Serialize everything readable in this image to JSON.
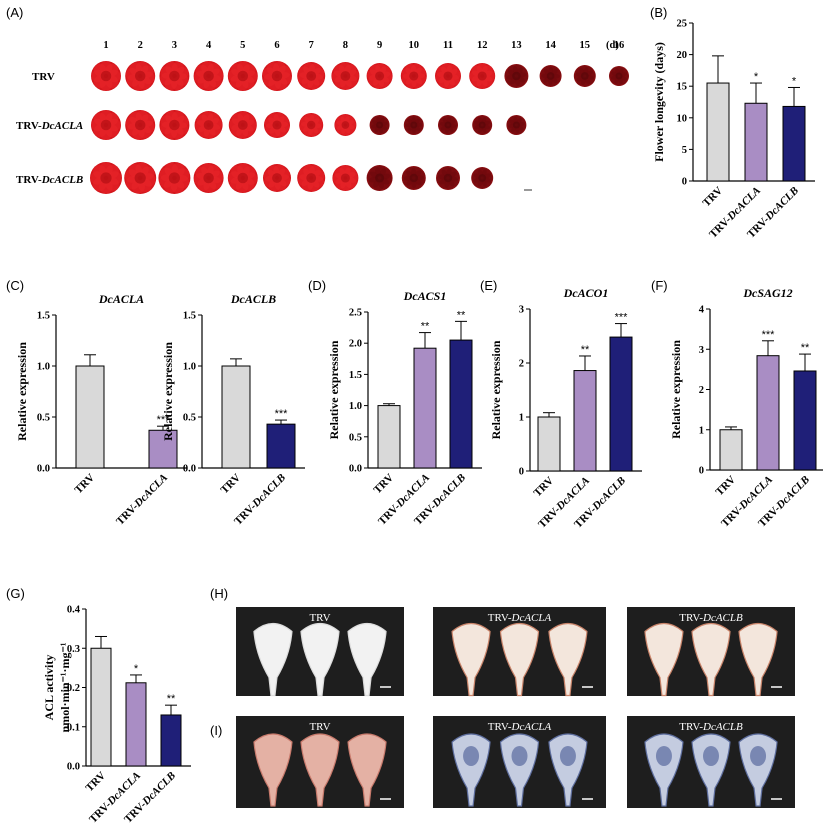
{
  "panels": {
    "A": {
      "letter": "(A)",
      "days": [
        "1",
        "2",
        "3",
        "4",
        "5",
        "6",
        "7",
        "8",
        "9",
        "10",
        "11",
        "12",
        "13",
        "14",
        "15",
        "16"
      ],
      "day_unit": "(d)",
      "rows": [
        {
          "label": "TRV",
          "label_prefix": "TRV",
          "label_gene": ""
        },
        {
          "label": "TRV-DcACLA",
          "label_prefix": "TRV-",
          "label_gene": "DcACLA"
        },
        {
          "label": "TRV-DcACLB",
          "label_prefix": "TRV-",
          "label_gene": "DcACLB"
        }
      ],
      "flowers_per_row": [
        16,
        13,
        12
      ],
      "flower_color": "#d4161c"
    },
    "B": {
      "letter": "(B)"
    },
    "C": {
      "letter": "(C)"
    },
    "D": {
      "letter": "(D)"
    },
    "E": {
      "letter": "(E)"
    },
    "F": {
      "letter": "(F)"
    },
    "G": {
      "letter": "(G)"
    },
    "H": {
      "letter": "(H)",
      "labels": [
        "TRV",
        "TRV-",
        "TRV-"
      ],
      "genes": [
        "",
        "DcACLA",
        "DcACLB"
      ]
    },
    "I": {
      "letter": "(I)",
      "labels": [
        "TRV",
        "TRV-",
        "TRV-"
      ],
      "genes": [
        "",
        "DcACLA",
        "DcACLB"
      ]
    }
  },
  "colors": {
    "trv": "#d9d9d9",
    "acla": "#a98dc4",
    "aclb": "#1f1f78",
    "photo_bg": "#1e1e1e"
  },
  "chart_data": [
    {
      "panel": "B",
      "type": "bar",
      "title": "",
      "ylabel": "Flower longevity (days)",
      "ylim": [
        0,
        25
      ],
      "yticks": [
        0,
        5,
        10,
        15,
        20,
        25
      ],
      "categories": [
        "TRV",
        "TRV-DcACLA",
        "TRV-DcACLB"
      ],
      "values": [
        15.5,
        12.3,
        11.8
      ],
      "errors": [
        4.3,
        3.2,
        3.0
      ],
      "significance": [
        "",
        "*",
        "*"
      ]
    },
    {
      "panel": "C1",
      "type": "bar",
      "title": "DcACLA",
      "ylabel": "Relative expression",
      "ylim": [
        0,
        1.5
      ],
      "yticks": [
        0.0,
        0.5,
        1.0,
        1.5
      ],
      "categories": [
        "TRV",
        "TRV-DcACLA"
      ],
      "values": [
        1.0,
        0.37
      ],
      "errors": [
        0.11,
        0.04
      ],
      "significance": [
        "",
        "***"
      ]
    },
    {
      "panel": "C2",
      "type": "bar",
      "title": "DcACLB",
      "ylabel": "Relative expression",
      "ylim": [
        0,
        1.5
      ],
      "yticks": [
        0.0,
        0.5,
        1.0,
        1.5
      ],
      "categories": [
        "TRV",
        "TRV-DcACLB"
      ],
      "values": [
        1.0,
        0.43
      ],
      "errors": [
        0.07,
        0.04
      ],
      "significance": [
        "",
        "***"
      ]
    },
    {
      "panel": "D",
      "type": "bar",
      "title": "DcACS1",
      "ylabel": "Relative expression",
      "ylim": [
        0,
        2.5
      ],
      "yticks": [
        0.0,
        0.5,
        1.0,
        1.5,
        2.0,
        2.5
      ],
      "categories": [
        "TRV",
        "TRV-DcACLA",
        "TRV-DcACLB"
      ],
      "values": [
        1.0,
        1.92,
        2.05
      ],
      "errors": [
        0.03,
        0.25,
        0.3
      ],
      "significance": [
        "",
        "**",
        "**"
      ]
    },
    {
      "panel": "E",
      "type": "bar",
      "title": "DcACO1",
      "ylabel": "Relative expression",
      "ylim": [
        0,
        3
      ],
      "yticks": [
        0,
        1,
        2,
        3
      ],
      "categories": [
        "TRV",
        "TRV-DcACLA",
        "TRV-DcACLB"
      ],
      "values": [
        1.0,
        1.86,
        2.48
      ],
      "errors": [
        0.08,
        0.27,
        0.25
      ],
      "significance": [
        "",
        "**",
        "***"
      ]
    },
    {
      "panel": "F",
      "type": "bar",
      "title": "DcSAG12",
      "ylabel": "Relative expression",
      "ylim": [
        0,
        4
      ],
      "yticks": [
        0,
        1,
        2,
        3,
        4
      ],
      "categories": [
        "TRV",
        "TRV-DcACLA",
        "TRV-DcACLB"
      ],
      "values": [
        1.0,
        2.84,
        2.46
      ],
      "errors": [
        0.07,
        0.37,
        0.42
      ],
      "significance": [
        "",
        "***",
        "**"
      ]
    },
    {
      "panel": "G",
      "type": "bar",
      "title": "",
      "ylabel": "ACL activity",
      "ylabel2": "nmol·min⁻¹·mg⁻¹",
      "ylim": [
        0,
        0.4
      ],
      "yticks": [
        0.0,
        0.1,
        0.2,
        0.3,
        0.4
      ],
      "categories": [
        "TRV",
        "TRV-DcACLA",
        "TRV-DcACLB"
      ],
      "values": [
        0.3,
        0.212,
        0.13
      ],
      "errors": [
        0.03,
        0.02,
        0.025
      ],
      "significance": [
        "",
        "*",
        "**"
      ]
    }
  ]
}
